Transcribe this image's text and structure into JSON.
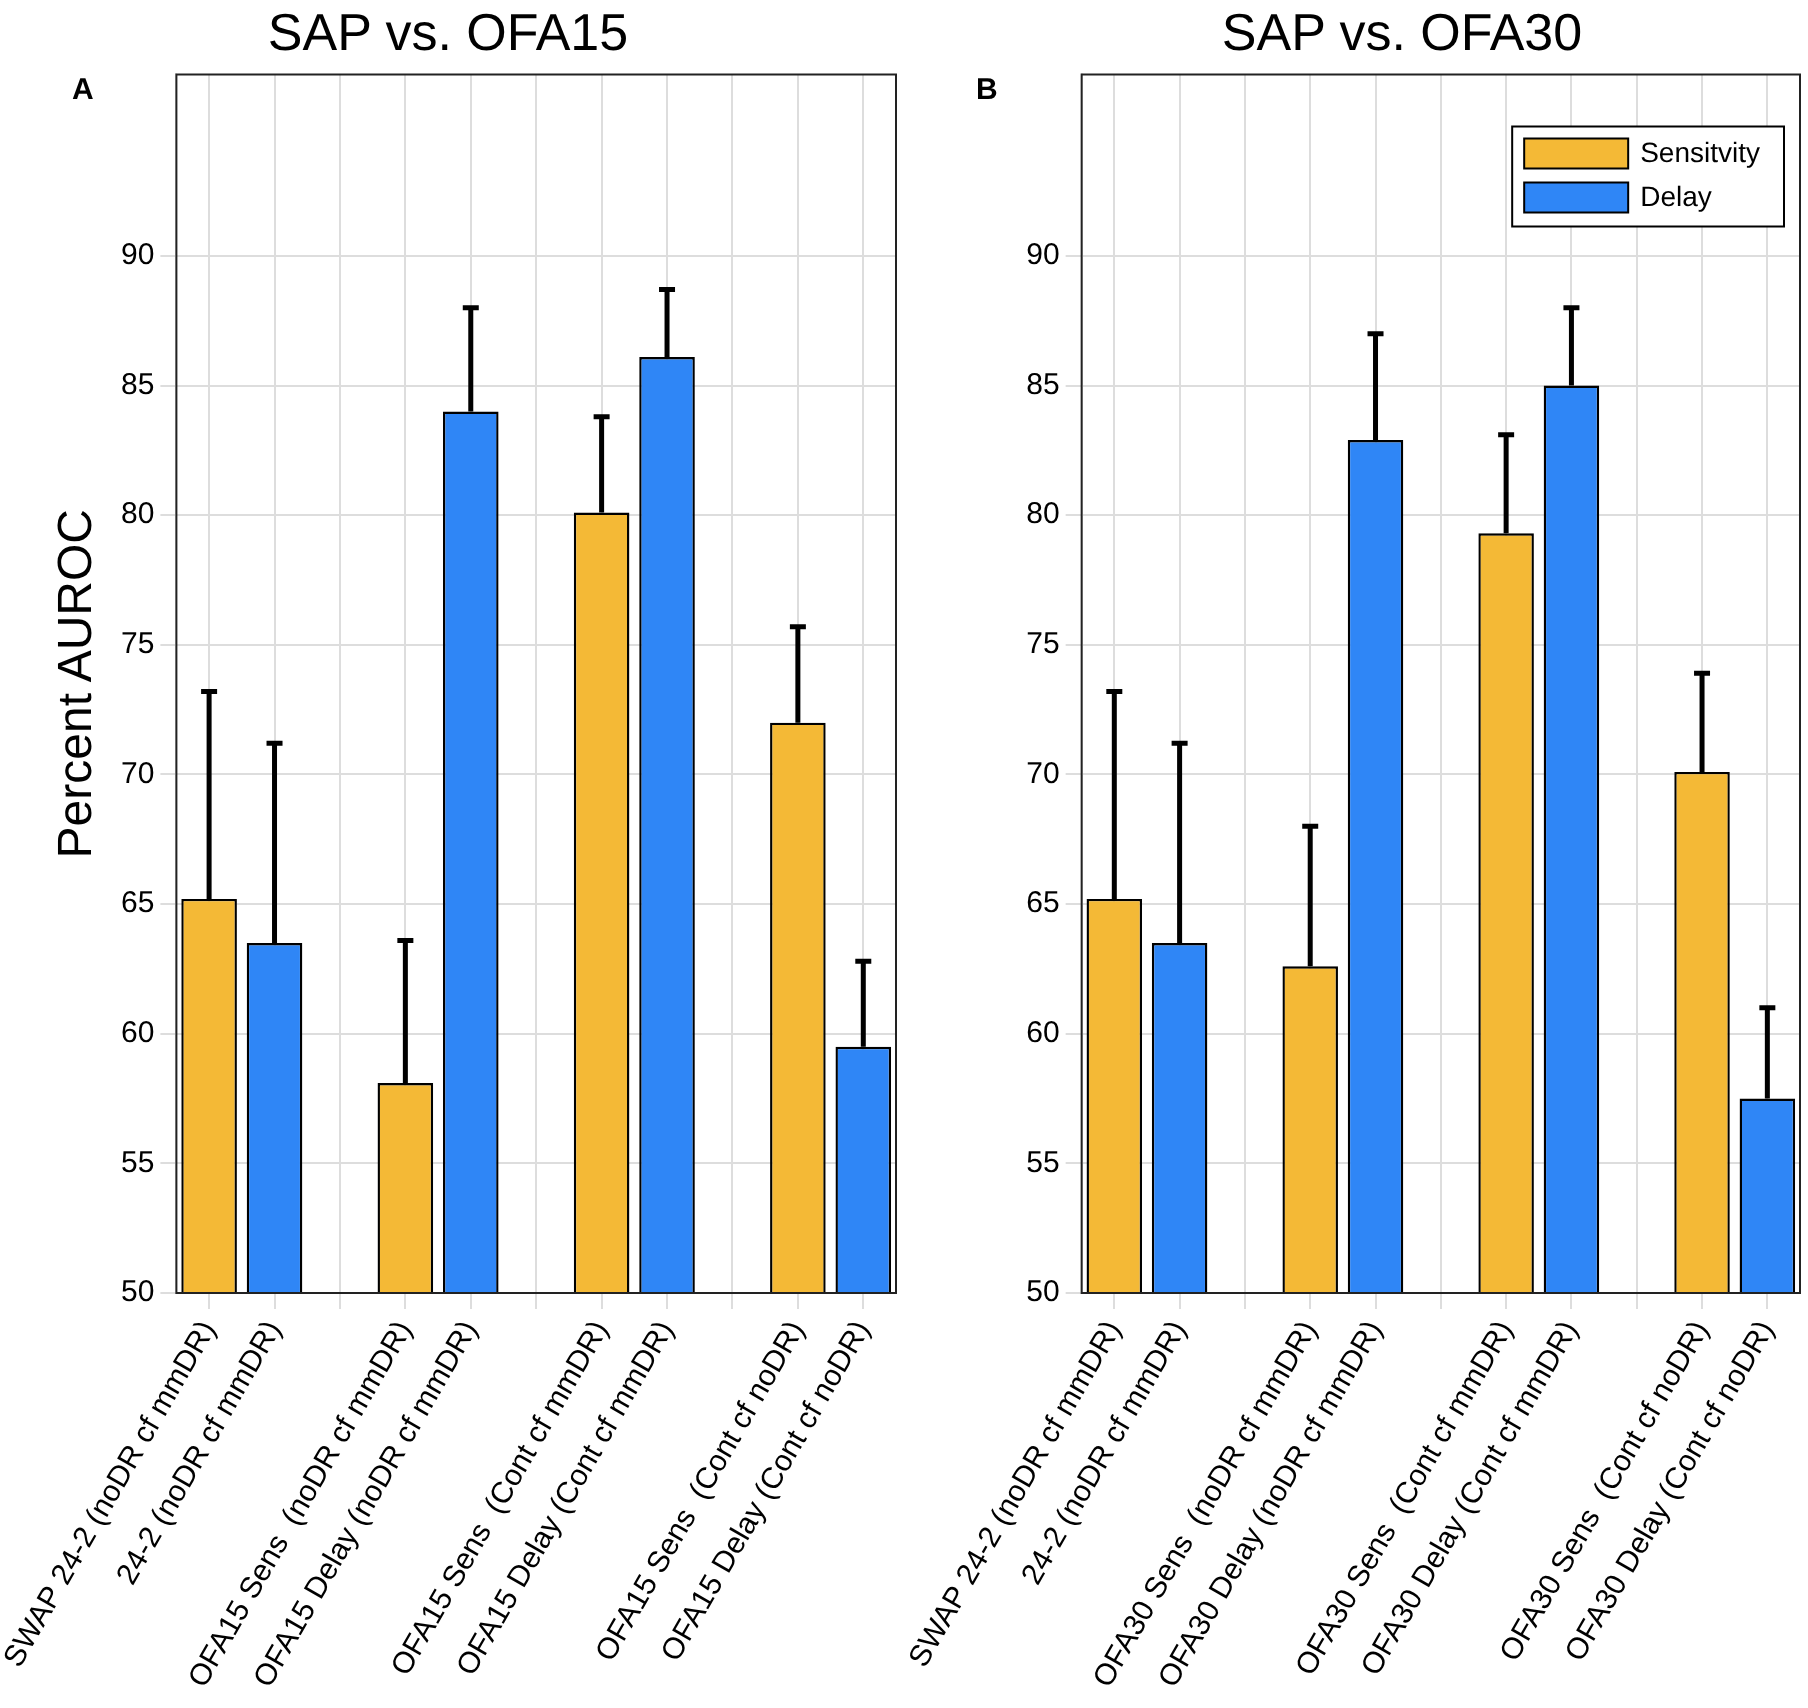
{
  "chart_data": [
    {
      "type": "bar",
      "title": "SAP vs. OFA15",
      "ylabel": "Percent AUROC",
      "annotations": [
        "A"
      ],
      "categories": [
        "SWAP 24-2 (noDR cf mmDR)",
        "24-2 (noDR cf mmDR)",
        null,
        "OFA15 Sens  (noDR cf mmDR)",
        "OFA15 Delay (noDR cf mmDR)",
        null,
        "OFA15 Sens  (Cont cf mmDR)",
        "OFA15 Delay (Cont cf mmDR)",
        null,
        "OFA15 Sens  (Cont cf noDR)",
        "OFA15 Delay (Cont cf noDR)"
      ],
      "series": [
        {
          "color": "#f4b936",
          "values": [
            65.2,
            null,
            null,
            58.1,
            null,
            null,
            80.1,
            null,
            null,
            72.0,
            null
          ],
          "errors": [
            [
              65.2,
              73.2
            ],
            null,
            null,
            [
              58.1,
              63.6
            ],
            null,
            null,
            [
              80.1,
              83.8
            ],
            null,
            null,
            [
              72.0,
              75.7
            ],
            null
          ]
        },
        {
          "color": "#2f86f6",
          "values": [
            null,
            63.5,
            null,
            null,
            84.0,
            null,
            null,
            86.1,
            null,
            null,
            59.5
          ],
          "errors": [
            null,
            [
              63.5,
              71.2
            ],
            null,
            null,
            [
              84.0,
              88.0
            ],
            null,
            null,
            [
              86.1,
              88.7
            ],
            null,
            null,
            [
              59.5,
              62.8
            ]
          ]
        }
      ],
      "ylim": [
        50,
        97
      ],
      "yticks": [
        50,
        55,
        60,
        65,
        70,
        75,
        80,
        85,
        90
      ],
      "grid": true,
      "legend": false
    },
    {
      "type": "bar",
      "title": "SAP vs. OFA30",
      "annotations": [
        "B"
      ],
      "categories": [
        "SWAP 24-2 (noDR cf mmDR)",
        "24-2 (noDR cf mmDR)",
        null,
        "OFA30 Sens  (noDR cf mmDR)",
        "OFA30 Delay (noDR cf mmDR)",
        null,
        "OFA30 Sens  (Cont cf mmDR)",
        "OFA30 Delay (Cont cf mmDR)",
        null,
        "OFA30 Sens  (Cont cf noDR)",
        "OFA30 Delay (Cont cf noDR)"
      ],
      "series": [
        {
          "name": "Sensitvity",
          "color": "#f4b936",
          "values": [
            65.2,
            null,
            null,
            62.6,
            null,
            null,
            79.3,
            null,
            null,
            70.1,
            null
          ],
          "errors": [
            [
              65.2,
              73.2
            ],
            null,
            null,
            [
              62.6,
              68.0
            ],
            null,
            null,
            [
              79.3,
              83.1
            ],
            null,
            null,
            [
              70.1,
              73.9
            ],
            null
          ]
        },
        {
          "name": "Delay",
          "color": "#2f86f6",
          "values": [
            null,
            63.5,
            null,
            null,
            82.9,
            null,
            null,
            85.0,
            null,
            null,
            57.5
          ],
          "errors": [
            null,
            [
              63.5,
              71.2
            ],
            null,
            null,
            [
              82.9,
              87.0
            ],
            null,
            null,
            [
              85.0,
              88.0
            ],
            null,
            null,
            [
              57.5,
              61.0
            ]
          ]
        }
      ],
      "ylim": [
        50,
        97
      ],
      "yticks": [
        50,
        55,
        60,
        65,
        70,
        75,
        80,
        85,
        90
      ],
      "grid": true,
      "legend": "top right"
    }
  ]
}
